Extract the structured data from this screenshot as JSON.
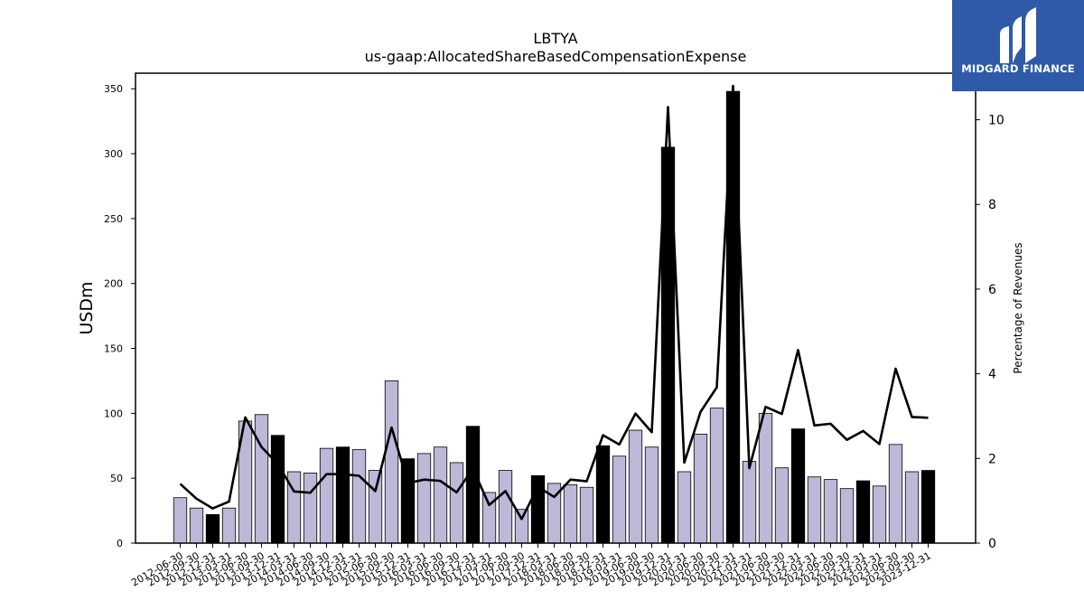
{
  "logo": {
    "text": "MIDGARD FINANCE"
  },
  "chart_data": {
    "type": "bar",
    "title": "LBTYA",
    "subtitle": "us-gaap:AllocatedShareBasedCompensationExpense",
    "ylabel": "USDm",
    "y2label": "Percentage of Revenues",
    "ylim": [
      0,
      362
    ],
    "y2lim": [
      0,
      11.1
    ],
    "yticks": [
      0,
      50,
      100,
      150,
      200,
      250,
      300,
      350
    ],
    "y2ticks": [
      0,
      2,
      4,
      6,
      8,
      10
    ],
    "categories": [
      "2012-06-30",
      "2012-09-30",
      "2012-12-31",
      "2013-03-31",
      "2013-06-30",
      "2013-09-30",
      "2013-12-31",
      "2014-03-31",
      "2014-06-30",
      "2014-09-30",
      "2014-12-31",
      "2015-03-31",
      "2015-06-30",
      "2015-09-30",
      "2015-12-31",
      "2016-03-31",
      "2016-06-30",
      "2016-09-30",
      "2016-12-31",
      "2017-03-31",
      "2017-06-30",
      "2017-09-30",
      "2017-12-31",
      "2018-03-31",
      "2018-06-30",
      "2018-09-30",
      "2018-12-31",
      "2019-03-31",
      "2019-06-30",
      "2019-09-30",
      "2019-12-31",
      "2020-03-31",
      "2020-06-30",
      "2020-09-30",
      "2020-12-31",
      "2021-03-31",
      "2021-06-30",
      "2021-09-30",
      "2021-12-31",
      "2022-03-31",
      "2022-06-30",
      "2022-09-30",
      "2022-12-31",
      "2023-03-31",
      "2023-06-30",
      "2023-09-30",
      "2023-12-31"
    ],
    "series": [
      {
        "type": "bar",
        "values": [
          35,
          27,
          22,
          27,
          94,
          99,
          83,
          55,
          54,
          73,
          74,
          72,
          56,
          125,
          65,
          69,
          74,
          62,
          90,
          39,
          56,
          26,
          52,
          46,
          45,
          43,
          75,
          67,
          87,
          74,
          305,
          55,
          84,
          104,
          348,
          63,
          100,
          58,
          88,
          51,
          49,
          42,
          48,
          44,
          76,
          55,
          56
        ],
        "highlight": [
          false,
          false,
          true,
          false,
          false,
          false,
          true,
          false,
          false,
          false,
          true,
          false,
          false,
          false,
          true,
          false,
          false,
          false,
          true,
          false,
          false,
          false,
          true,
          false,
          false,
          false,
          true,
          false,
          false,
          false,
          true,
          false,
          false,
          false,
          true,
          false,
          false,
          false,
          true,
          false,
          false,
          false,
          true,
          false,
          false,
          false,
          true
        ]
      },
      {
        "type": "line",
        "axis": "right",
        "values": [
          1.4,
          1.05,
          0.82,
          0.98,
          2.97,
          2.27,
          1.87,
          1.22,
          1.19,
          1.63,
          1.63,
          1.59,
          1.23,
          2.73,
          1.42,
          1.5,
          1.47,
          1.2,
          1.76,
          0.9,
          1.23,
          0.57,
          1.33,
          1.09,
          1.5,
          1.46,
          2.55,
          2.33,
          3.06,
          2.62,
          10.3,
          1.9,
          3.1,
          3.68,
          10.8,
          1.77,
          3.22,
          3.05,
          4.56,
          2.78,
          2.82,
          2.44,
          2.65,
          2.34,
          4.12,
          2.98,
          2.96
        ]
      }
    ],
    "colors": {
      "bar": "#bcb8d8",
      "bar_highlight": "#000000",
      "line": "#000000",
      "logo_bg": "#2e5aa8"
    },
    "grid": false,
    "legend": "none"
  }
}
